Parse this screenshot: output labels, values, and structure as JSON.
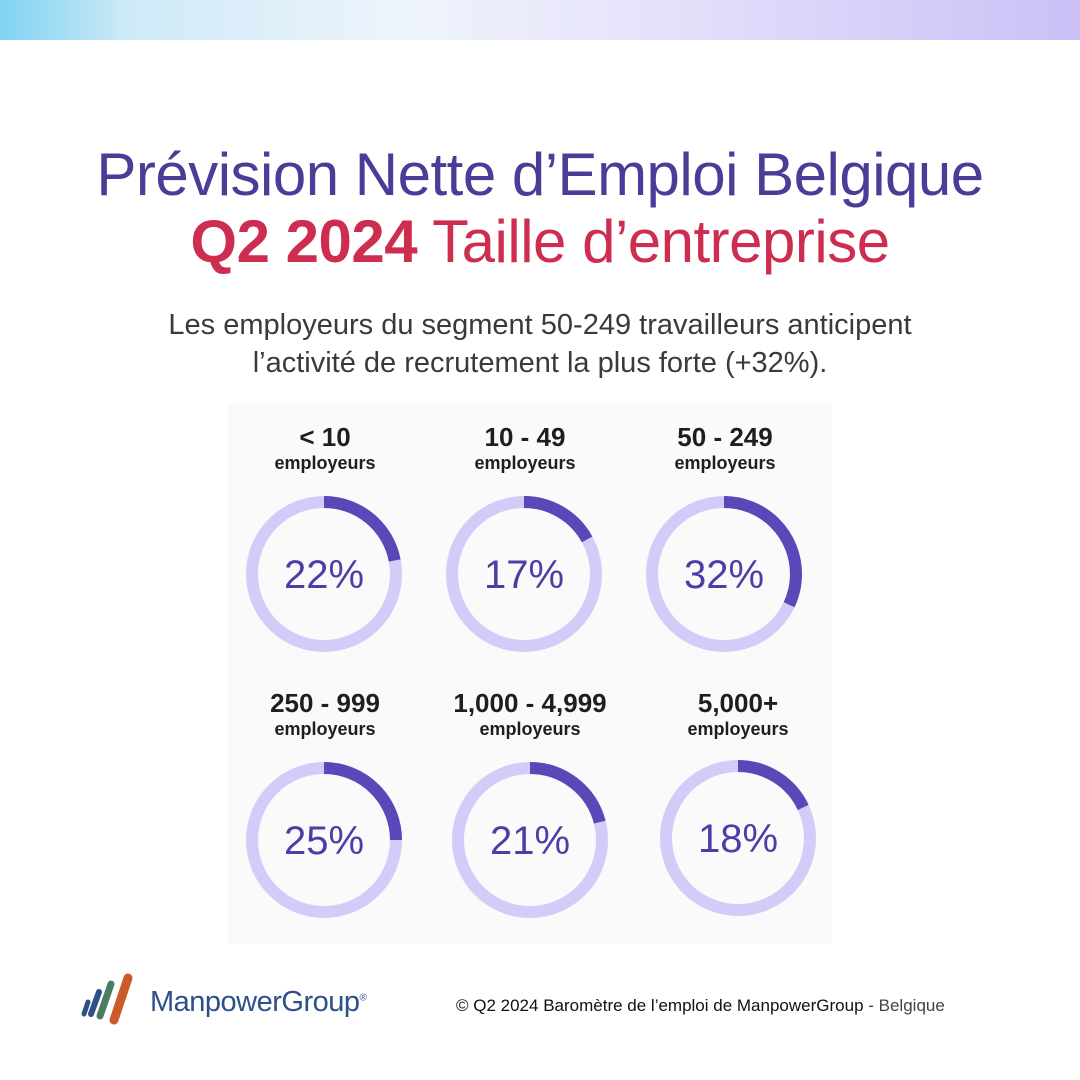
{
  "header": {
    "title_line1": "Prévision Nette d’Emploi Belgique",
    "title_line2_bold": "Q2 2024",
    "title_line2_rest": " Taille d’entreprise"
  },
  "subtitle": {
    "line1": "Les employeurs du segment 50-249 travailleurs anticipent",
    "line2": "l’activité de recrutement la plus forte (+32%)."
  },
  "chart_data": {
    "type": "donut",
    "unit": "employeurs",
    "categories": [
      "< 10",
      "10 - 49",
      "50 - 249",
      "250 - 999",
      "1,000 - 4,999",
      "5,000+"
    ],
    "values": [
      22,
      17,
      32,
      25,
      21,
      18
    ],
    "value_labels": [
      "22%",
      "17%",
      "32%",
      "25%",
      "21%",
      "18%"
    ],
    "colors": {
      "fill": "#5a47b8",
      "track": "#d3ccf8",
      "value_text": "#4f3ca5"
    }
  },
  "footer": {
    "copyright": "© Q2 2024 Baromètre de l’emploi de ManpowerGroup",
    "country": " - Belgique",
    "logo_text": "ManpowerGroup",
    "logo_mark": "®"
  }
}
